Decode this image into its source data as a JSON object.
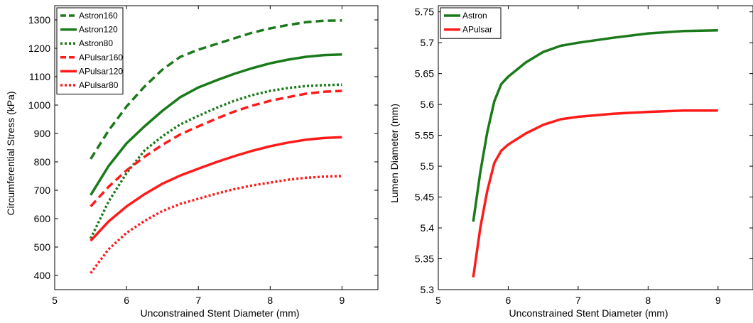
{
  "chart_data": [
    {
      "type": "line",
      "xlabel": "Unconstrained Stent Diameter (mm)",
      "ylabel": "Circumferential Stress (kPa)",
      "xlim": [
        5,
        9.5
      ],
      "ylim": [
        350,
        1350
      ],
      "xticks": [
        5,
        6,
        7,
        8,
        9
      ],
      "yticks": [
        400,
        500,
        600,
        700,
        800,
        900,
        1000,
        1100,
        1200,
        1300
      ],
      "legend_position": "top-left",
      "x": [
        5.5,
        5.75,
        6.0,
        6.25,
        6.5,
        6.75,
        7.0,
        7.25,
        7.5,
        7.75,
        8.0,
        8.25,
        8.5,
        8.75,
        9.0
      ],
      "series": [
        {
          "name": "Astron160",
          "color": "#1a7a1a",
          "dash": "dashed",
          "values": [
            810,
            910,
            995,
            1065,
            1125,
            1170,
            1195,
            1215,
            1235,
            1255,
            1270,
            1282,
            1292,
            1297,
            1298
          ]
        },
        {
          "name": "Astron120",
          "color": "#1a7a1a",
          "dash": "solid",
          "values": [
            683,
            785,
            865,
            925,
            980,
            1028,
            1062,
            1087,
            1110,
            1130,
            1147,
            1160,
            1170,
            1176,
            1178
          ]
        },
        {
          "name": "Astron80",
          "color": "#1a7a1a",
          "dash": "dotted",
          "values": [
            530,
            660,
            760,
            840,
            890,
            932,
            962,
            990,
            1015,
            1035,
            1050,
            1060,
            1067,
            1070,
            1072
          ]
        },
        {
          "name": "APulsar160",
          "color": "#ff1a1a",
          "dash": "dashed",
          "values": [
            643,
            712,
            770,
            818,
            860,
            897,
            925,
            952,
            977,
            998,
            1015,
            1028,
            1040,
            1047,
            1050
          ]
        },
        {
          "name": "APulsar120",
          "color": "#ff1a1a",
          "dash": "solid",
          "values": [
            522,
            590,
            643,
            686,
            723,
            752,
            776,
            799,
            820,
            839,
            855,
            868,
            878,
            884,
            887
          ]
        },
        {
          "name": "APulsar80",
          "color": "#ff1a1a",
          "dash": "dotted",
          "values": [
            408,
            492,
            550,
            592,
            627,
            652,
            670,
            688,
            704,
            717,
            727,
            737,
            744,
            748,
            750
          ]
        }
      ]
    },
    {
      "type": "line",
      "xlabel": "Unconstrained Stent Diameter (mm)",
      "ylabel": "Lumen Diameter (mm)",
      "xlim": [
        5,
        9.5
      ],
      "ylim": [
        5.3,
        5.76
      ],
      "xticks": [
        5,
        6,
        7,
        8,
        9
      ],
      "yticks": [
        5.3,
        5.35,
        5.4,
        5.45,
        5.5,
        5.55,
        5.6,
        5.65,
        5.7,
        5.75
      ],
      "ytick_labels": [
        "5.3",
        "5.35",
        "5.4",
        "5.45",
        "5.5",
        "5.55",
        "5.6",
        "5.65",
        "5.7",
        "5.75"
      ],
      "legend_position": "top-left",
      "x": [
        5.5,
        5.6,
        5.7,
        5.8,
        5.9,
        6.0,
        6.25,
        6.5,
        6.75,
        7.0,
        7.5,
        8.0,
        8.5,
        9.0
      ],
      "series": [
        {
          "name": "Astron",
          "color": "#1a7a1a",
          "dash": "solid",
          "values": [
            5.41,
            5.49,
            5.555,
            5.605,
            5.633,
            5.645,
            5.668,
            5.685,
            5.695,
            5.7,
            5.708,
            5.715,
            5.719,
            5.72
          ]
        },
        {
          "name": "APulsar",
          "color": "#ff1a1a",
          "dash": "solid",
          "values": [
            5.32,
            5.4,
            5.46,
            5.505,
            5.525,
            5.535,
            5.553,
            5.567,
            5.576,
            5.58,
            5.585,
            5.588,
            5.59,
            5.59
          ]
        }
      ]
    }
  ]
}
